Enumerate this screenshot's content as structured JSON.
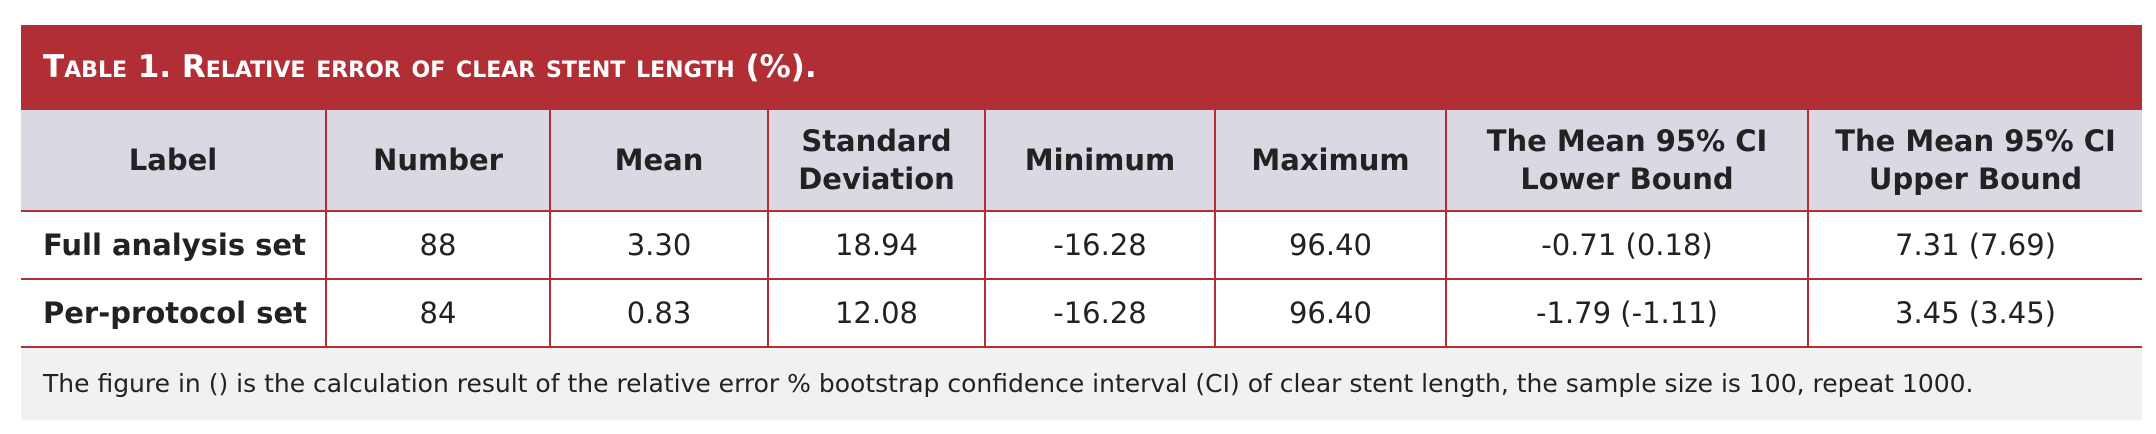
{
  "title": "Table 1. Relative error of clear stent length (%).",
  "table": {
    "header": [
      "Label",
      "Number",
      "Mean",
      "Standard\nDeviation",
      "Minimum",
      "Maximum",
      "The Mean 95% CI\nLower Bound",
      "The Mean 95% CI\nUpper Bound"
    ],
    "rows": [
      [
        "Full analysis set",
        "88",
        "3.30",
        "18.94",
        "-16.28",
        "96.40",
        "-0.71 (0.18)",
        "7.31 (7.69)"
      ],
      [
        "Per-protocol set",
        "84",
        "0.83",
        "12.08",
        "-16.28",
        "96.40",
        "-1.79 (-1.11)",
        "3.45 (3.45)"
      ]
    ]
  },
  "footnote": "The figure in () is the calculation result of the relative error % bootstrap confidence interval (CI) of clear stent length, the sample size is 100, repeat 1000."
}
